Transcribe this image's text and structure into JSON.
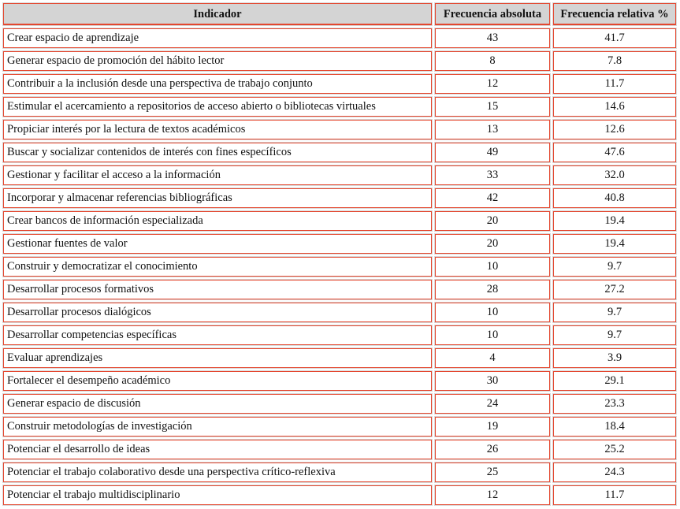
{
  "table": {
    "header": [
      "Indicador",
      "Frecuencia absoluta",
      "Frecuencia relativa %"
    ],
    "rows": [
      [
        "Crear espacio de aprendizaje",
        "43",
        "41.7"
      ],
      [
        "Generar espacio de promoción del hábito lector",
        "8",
        "7.8"
      ],
      [
        "Contribuir a la inclusión desde una perspectiva de trabajo conjunto",
        "12",
        "11.7"
      ],
      [
        "Estimular el acercamiento a repositorios de acceso abierto o bibliotecas virtuales",
        "15",
        "14.6"
      ],
      [
        "Propiciar interés por la lectura de textos académicos",
        "13",
        "12.6"
      ],
      [
        "Buscar y socializar contenidos de interés con fines específicos",
        "49",
        "47.6"
      ],
      [
        "Gestionar y facilitar el acceso a la información",
        "33",
        "32.0"
      ],
      [
        "Incorporar y almacenar referencias bibliográficas",
        "42",
        "40.8"
      ],
      [
        "Crear bancos de información especializada",
        "20",
        "19.4"
      ],
      [
        "Gestionar fuentes de valor",
        "20",
        "19.4"
      ],
      [
        "Construir y democratizar el conocimiento",
        "10",
        "9.7"
      ],
      [
        "Desarrollar procesos formativos",
        "28",
        "27.2"
      ],
      [
        "Desarrollar procesos dialógicos",
        "10",
        "9.7"
      ],
      [
        "Desarrollar competencias específicas",
        "10",
        "9.7"
      ],
      [
        "Evaluar aprendizajes",
        "4",
        "3.9"
      ],
      [
        "Fortalecer el desempeño académico",
        "30",
        "29.1"
      ],
      [
        "Generar espacio de discusión",
        "24",
        "23.3"
      ],
      [
        "Construir metodologías de investigación",
        "19",
        "18.4"
      ],
      [
        "Potenciar el desarrollo de ideas",
        "26",
        "25.2"
      ],
      [
        "Potenciar el trabajo colaborativo desde una perspectiva crítico-reflexiva",
        "25",
        "24.3"
      ],
      [
        "Potenciar el trabajo multidisciplinario",
        "12",
        "11.7"
      ]
    ]
  }
}
